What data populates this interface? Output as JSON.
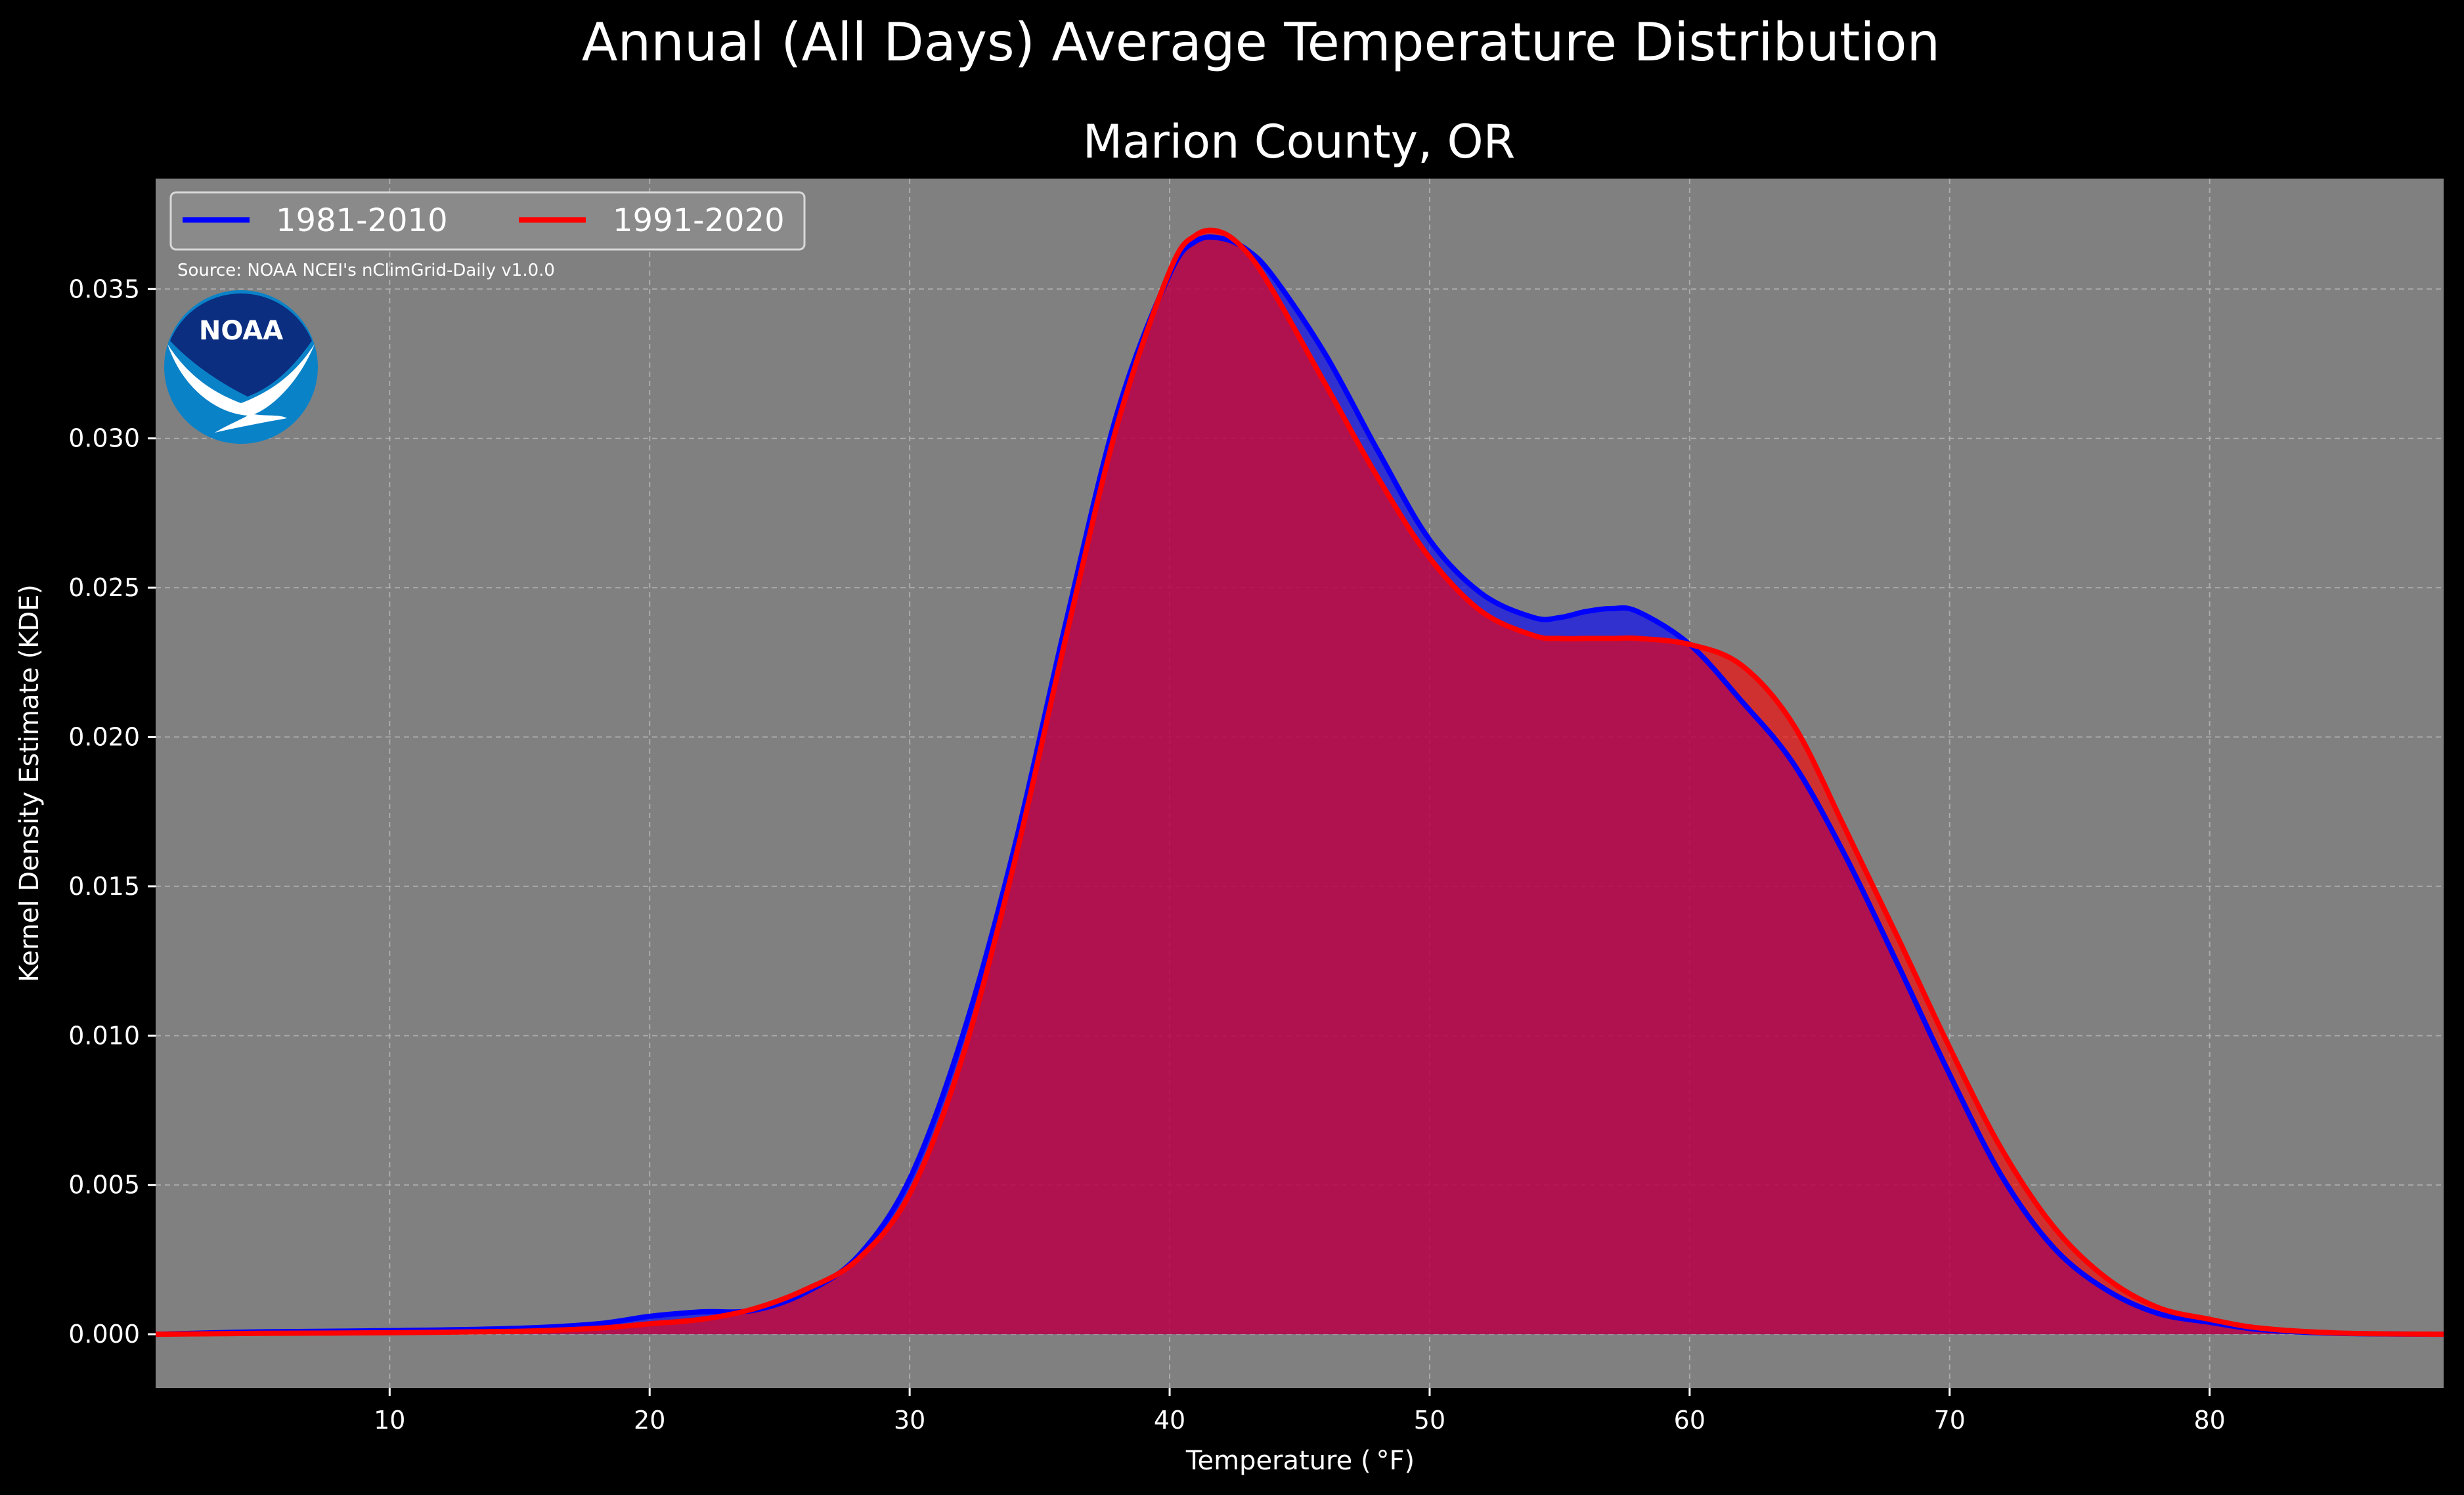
{
  "title": "Annual (All Days) Average Temperature Distribution",
  "subtitle": "Marion County, OR",
  "source": "Source: NOAA NCEI's nClimGrid-Daily v1.0.0",
  "logo_text": "NOAA",
  "colors": {
    "background": "#000000",
    "plot_background": "#808080",
    "series_1981_2010": "#0000ff",
    "series_1991_2020": "#ff0000",
    "overlap_fill": "#9e1f5c"
  },
  "chart_data": {
    "type": "area",
    "xlabel": "Temperature ($^\\circ$F)",
    "xlabel_display": "Temperature ( °F)",
    "ylabel": "Kernel Density Estimate (KDE)",
    "xlim": [
      1,
      89
    ],
    "ylim": [
      -0.0018,
      0.0387
    ],
    "xticks": [
      10,
      20,
      30,
      40,
      50,
      60,
      70,
      80
    ],
    "yticks": [
      0.0,
      0.005,
      0.01,
      0.015,
      0.02,
      0.025,
      0.03,
      0.035
    ],
    "ytick_labels": [
      "0.000",
      "0.005",
      "0.010",
      "0.015",
      "0.020",
      "0.025",
      "0.030",
      "0.035"
    ],
    "grid": true,
    "legend": {
      "placement": "top-left",
      "ncol": 2
    },
    "x": [
      1,
      5,
      10,
      15,
      18,
      20,
      22,
      24,
      26,
      28,
      30,
      32,
      34,
      36,
      38,
      40,
      41,
      42,
      43,
      44,
      46,
      48,
      50,
      52,
      54,
      55,
      56,
      57,
      58,
      60,
      62,
      64,
      66,
      68,
      70,
      72,
      74,
      76,
      78,
      80,
      82,
      85,
      89
    ],
    "series": [
      {
        "name": "1981-2010",
        "color": "#0000ff",
        "values": [
          0.0,
          8e-05,
          0.00012,
          0.0002,
          0.00035,
          0.0006,
          0.00075,
          0.0008,
          0.0014,
          0.0026,
          0.0052,
          0.0099,
          0.0162,
          0.0238,
          0.0309,
          0.0355,
          0.0366,
          0.0367,
          0.0363,
          0.0354,
          0.0328,
          0.0296,
          0.0266,
          0.0248,
          0.024,
          0.024,
          0.0242,
          0.0243,
          0.0242,
          0.0231,
          0.0212,
          0.0191,
          0.016,
          0.0124,
          0.0087,
          0.0053,
          0.0029,
          0.0015,
          0.0007,
          0.0004,
          0.00015,
          3e-05,
          0.0
        ]
      },
      {
        "name": "1991-2020",
        "color": "#ff0000",
        "values": [
          0.0,
          3e-05,
          5e-05,
          0.0001,
          0.0002,
          0.00035,
          0.0005,
          0.00085,
          0.0015,
          0.0025,
          0.0047,
          0.0092,
          0.0157,
          0.0233,
          0.0305,
          0.0356,
          0.0368,
          0.0369,
          0.0362,
          0.0349,
          0.0318,
          0.0287,
          0.026,
          0.0242,
          0.0234,
          0.0233,
          0.0233,
          0.0233,
          0.0233,
          0.0231,
          0.0224,
          0.0204,
          0.0169,
          0.0133,
          0.0096,
          0.0062,
          0.0036,
          0.0019,
          0.0009,
          0.0005,
          0.0002,
          4e-05,
          0.0
        ]
      }
    ]
  }
}
